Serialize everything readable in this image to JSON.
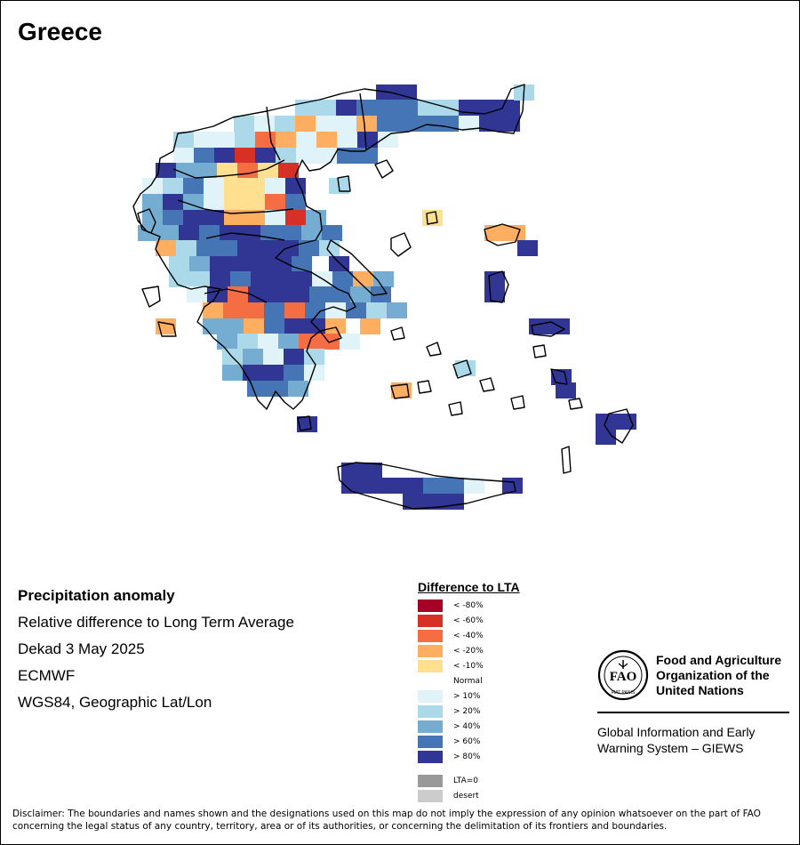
{
  "title": "Greece",
  "info": {
    "heading": "Precipitation anomaly",
    "subtitle": "Relative difference to Long Term Average",
    "period": "Dekad 3 May 2025",
    "model": "ECMWF",
    "projection": "WGS84, Geographic Lat/Lon"
  },
  "legend": {
    "title": "Difference to LTA",
    "classes": [
      {
        "label": "< -80%",
        "color": "#a50026"
      },
      {
        "label": "< -60%",
        "color": "#d73027"
      },
      {
        "label": "< -40%",
        "color": "#f46d43"
      },
      {
        "label": "< -20%",
        "color": "#fdae61"
      },
      {
        "label": "< -10%",
        "color": "#fee090"
      },
      {
        "label": "Normal",
        "color": "#ffffff"
      },
      {
        "label": "> 10%",
        "color": "#e0f3f8"
      },
      {
        "label": "> 20%",
        "color": "#abd9e9"
      },
      {
        "label": "> 40%",
        "color": "#74add1"
      },
      {
        "label": "> 60%",
        "color": "#4575b4"
      },
      {
        "label": "> 80%",
        "color": "#313695"
      }
    ],
    "extra": [
      {
        "label": "LTA=0",
        "color": "#999999"
      },
      {
        "label": "desert",
        "color": "#cccccc"
      }
    ]
  },
  "fao": {
    "org_line1": "Food and Agriculture",
    "org_line2": "Organization of the",
    "org_line3": "United Nations",
    "giews_line1": "Global Information and Early",
    "giews_line2": "Warning System – GIEWS",
    "logo_letters": "FAO",
    "logo_motto": "FIAT PANIS"
  },
  "disclaimer_line1": "Disclaimer: The boundaries and names shown and the designations used on this map do not imply the expression of any opinion whatsoever on the part of FAO",
  "disclaimer_line2": "concerning the legal status of any country, territory, area or of its authorities, or concerning the delimitation of its frontiers and boundaries."
}
